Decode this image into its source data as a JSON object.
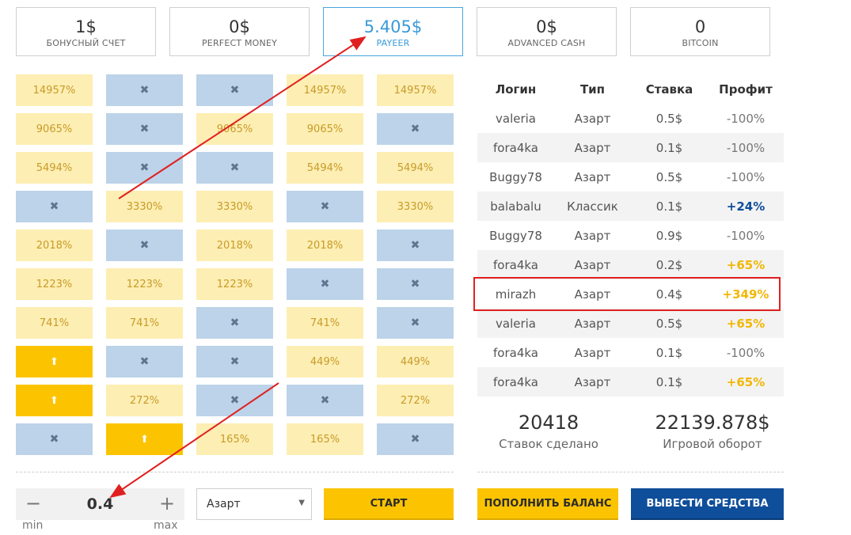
{
  "balances": [
    {
      "amount": "1$",
      "label": "БОНУСНЫЙ СЧЕТ",
      "active": false
    },
    {
      "amount": "0$",
      "label": "PERFECT MONEY",
      "active": false
    },
    {
      "amount": "5.405$",
      "label": "PAYEER",
      "active": true
    },
    {
      "amount": "0$",
      "label": "ADVANCED CASH",
      "active": false
    },
    {
      "amount": "0",
      "label": "BITCOIN",
      "active": false
    }
  ],
  "grid": {
    "rows": [
      [
        {
          "t": "pct",
          "v": "14957%"
        },
        {
          "t": "x",
          "v": "✖"
        },
        {
          "t": "x",
          "v": "✖"
        },
        {
          "t": "pct",
          "v": "14957%"
        },
        {
          "t": "pct",
          "v": "14957%"
        }
      ],
      [
        {
          "t": "pct",
          "v": "9065%"
        },
        {
          "t": "x",
          "v": "✖"
        },
        {
          "t": "pct",
          "v": "9065%"
        },
        {
          "t": "pct",
          "v": "9065%"
        },
        {
          "t": "x",
          "v": "✖"
        }
      ],
      [
        {
          "t": "pct",
          "v": "5494%"
        },
        {
          "t": "x",
          "v": "✖"
        },
        {
          "t": "x",
          "v": "✖"
        },
        {
          "t": "pct",
          "v": "5494%"
        },
        {
          "t": "pct",
          "v": "5494%"
        }
      ],
      [
        {
          "t": "x",
          "v": "✖"
        },
        {
          "t": "pct",
          "v": "3330%"
        },
        {
          "t": "pct",
          "v": "3330%"
        },
        {
          "t": "x",
          "v": "✖"
        },
        {
          "t": "pct",
          "v": "3330%"
        }
      ],
      [
        {
          "t": "pct",
          "v": "2018%"
        },
        {
          "t": "x",
          "v": "✖"
        },
        {
          "t": "pct",
          "v": "2018%"
        },
        {
          "t": "pct",
          "v": "2018%"
        },
        {
          "t": "x",
          "v": "✖"
        }
      ],
      [
        {
          "t": "pct",
          "v": "1223%"
        },
        {
          "t": "pct",
          "v": "1223%"
        },
        {
          "t": "pct",
          "v": "1223%"
        },
        {
          "t": "x",
          "v": "✖"
        },
        {
          "t": "x",
          "v": "✖"
        }
      ],
      [
        {
          "t": "pct",
          "v": "741%"
        },
        {
          "t": "pct",
          "v": "741%"
        },
        {
          "t": "x",
          "v": "✖"
        },
        {
          "t": "pct",
          "v": "741%"
        },
        {
          "t": "x",
          "v": "✖"
        }
      ],
      [
        {
          "t": "up",
          "v": "⬆"
        },
        {
          "t": "x",
          "v": "✖"
        },
        {
          "t": "x",
          "v": "✖"
        },
        {
          "t": "pct",
          "v": "449%"
        },
        {
          "t": "pct",
          "v": "449%"
        }
      ],
      [
        {
          "t": "up",
          "v": "⬆"
        },
        {
          "t": "pct",
          "v": "272%"
        },
        {
          "t": "x",
          "v": "✖"
        },
        {
          "t": "x",
          "v": "✖"
        },
        {
          "t": "pct",
          "v": "272%"
        }
      ],
      [
        {
          "t": "x",
          "v": "✖"
        },
        {
          "t": "up",
          "v": "⬆"
        },
        {
          "t": "pct",
          "v": "165%"
        },
        {
          "t": "pct",
          "v": "165%"
        },
        {
          "t": "x",
          "v": "✖"
        }
      ]
    ]
  },
  "controls": {
    "minus": "−",
    "plus": "+",
    "bet_value": "0.4",
    "min_label": "min",
    "max_label": "max",
    "mode_value": "Азарт",
    "start_label": "СТАРТ"
  },
  "table": {
    "headers": [
      "Логин",
      "Тип",
      "Ставка",
      "Профит"
    ],
    "rows": [
      {
        "login": "valeria",
        "type": "Азарт",
        "bet": "0.5$",
        "profit": "-100%",
        "kind": "neg"
      },
      {
        "login": "fora4ka",
        "type": "Азарт",
        "bet": "0.1$",
        "profit": "-100%",
        "kind": "neg"
      },
      {
        "login": "Buggy78",
        "type": "Азарт",
        "bet": "0.5$",
        "profit": "-100%",
        "kind": "neg"
      },
      {
        "login": "balabalu",
        "type": "Классик",
        "bet": "0.1$",
        "profit": "+24%",
        "kind": "pos-blue"
      },
      {
        "login": "Buggy78",
        "type": "Азарт",
        "bet": "0.9$",
        "profit": "-100%",
        "kind": "neg"
      },
      {
        "login": "fora4ka",
        "type": "Азарт",
        "bet": "0.2$",
        "profit": "+65%",
        "kind": "pos-yellow"
      },
      {
        "login": "mirazh",
        "type": "Азарт",
        "bet": "0.4$",
        "profit": "+349%",
        "kind": "pos-yellow"
      },
      {
        "login": "valeria",
        "type": "Азарт",
        "bet": "0.5$",
        "profit": "+65%",
        "kind": "pos-yellow"
      },
      {
        "login": "fora4ka",
        "type": "Азарт",
        "bet": "0.1$",
        "profit": "-100%",
        "kind": "neg"
      },
      {
        "login": "fora4ka",
        "type": "Азарт",
        "bet": "0.1$",
        "profit": "+65%",
        "kind": "pos-yellow"
      }
    ]
  },
  "stats": {
    "bets_count": "20418",
    "bets_caption": "Ставок сделано",
    "turnover": "22139.878$",
    "turnover_caption": "Игровой оборот"
  },
  "actions": {
    "deposit_label": "ПОПОЛНИТЬ БАЛАНС",
    "withdraw_label": "ВЫВЕСТИ СРЕДСТВА"
  },
  "colors": {
    "accent_yellow": "#fcc400",
    "accent_blue": "#0f4e9a",
    "payeer_blue": "#3a9ad9",
    "annotation_red": "#e02020"
  }
}
